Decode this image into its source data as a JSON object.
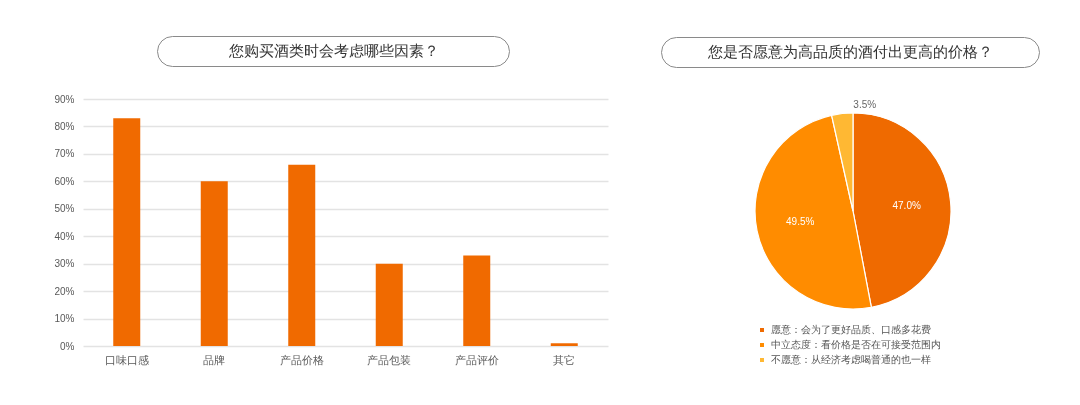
{
  "chart_data": [
    {
      "type": "bar",
      "title": "您购买酒类时会考虑哪些因素？",
      "categories": [
        "口味口感",
        "品牌",
        "产品价格",
        "产品包装",
        "产品评价",
        "其它"
      ],
      "values": [
        83,
        60,
        66,
        30,
        33,
        1
      ],
      "color": "#f06a00",
      "ylim": [
        0,
        90
      ],
      "yticks": [
        {
          "value": 0,
          "label": "0%"
        },
        {
          "value": 10,
          "label": "10%"
        },
        {
          "value": 20,
          "label": "20%"
        },
        {
          "value": 30,
          "label": "30%"
        },
        {
          "value": 40,
          "label": "40%"
        },
        {
          "value": 50,
          "label": "50%"
        },
        {
          "value": 60,
          "label": "60%"
        },
        {
          "value": 70,
          "label": "70%"
        },
        {
          "value": 80,
          "label": "80%"
        },
        {
          "value": 90,
          "label": "90%"
        }
      ],
      "grid": "y"
    },
    {
      "type": "pie",
      "title": "您是否愿意为高品质的酒付出更高的价格？",
      "categories": [
        "愿意：会为了更好品质、口感多花费",
        "中立态度：看价格是否在可接受范围内",
        "不愿意：从经济考虑喝普通的也一样"
      ],
      "values": [
        47.0,
        49.5,
        3.5
      ],
      "colors": [
        "#ef6a00",
        "#ff8c00",
        "#ffb833"
      ],
      "value_labels": [
        "47.0%",
        "49.5%",
        "3.5%"
      ],
      "legend": "bottom"
    }
  ]
}
